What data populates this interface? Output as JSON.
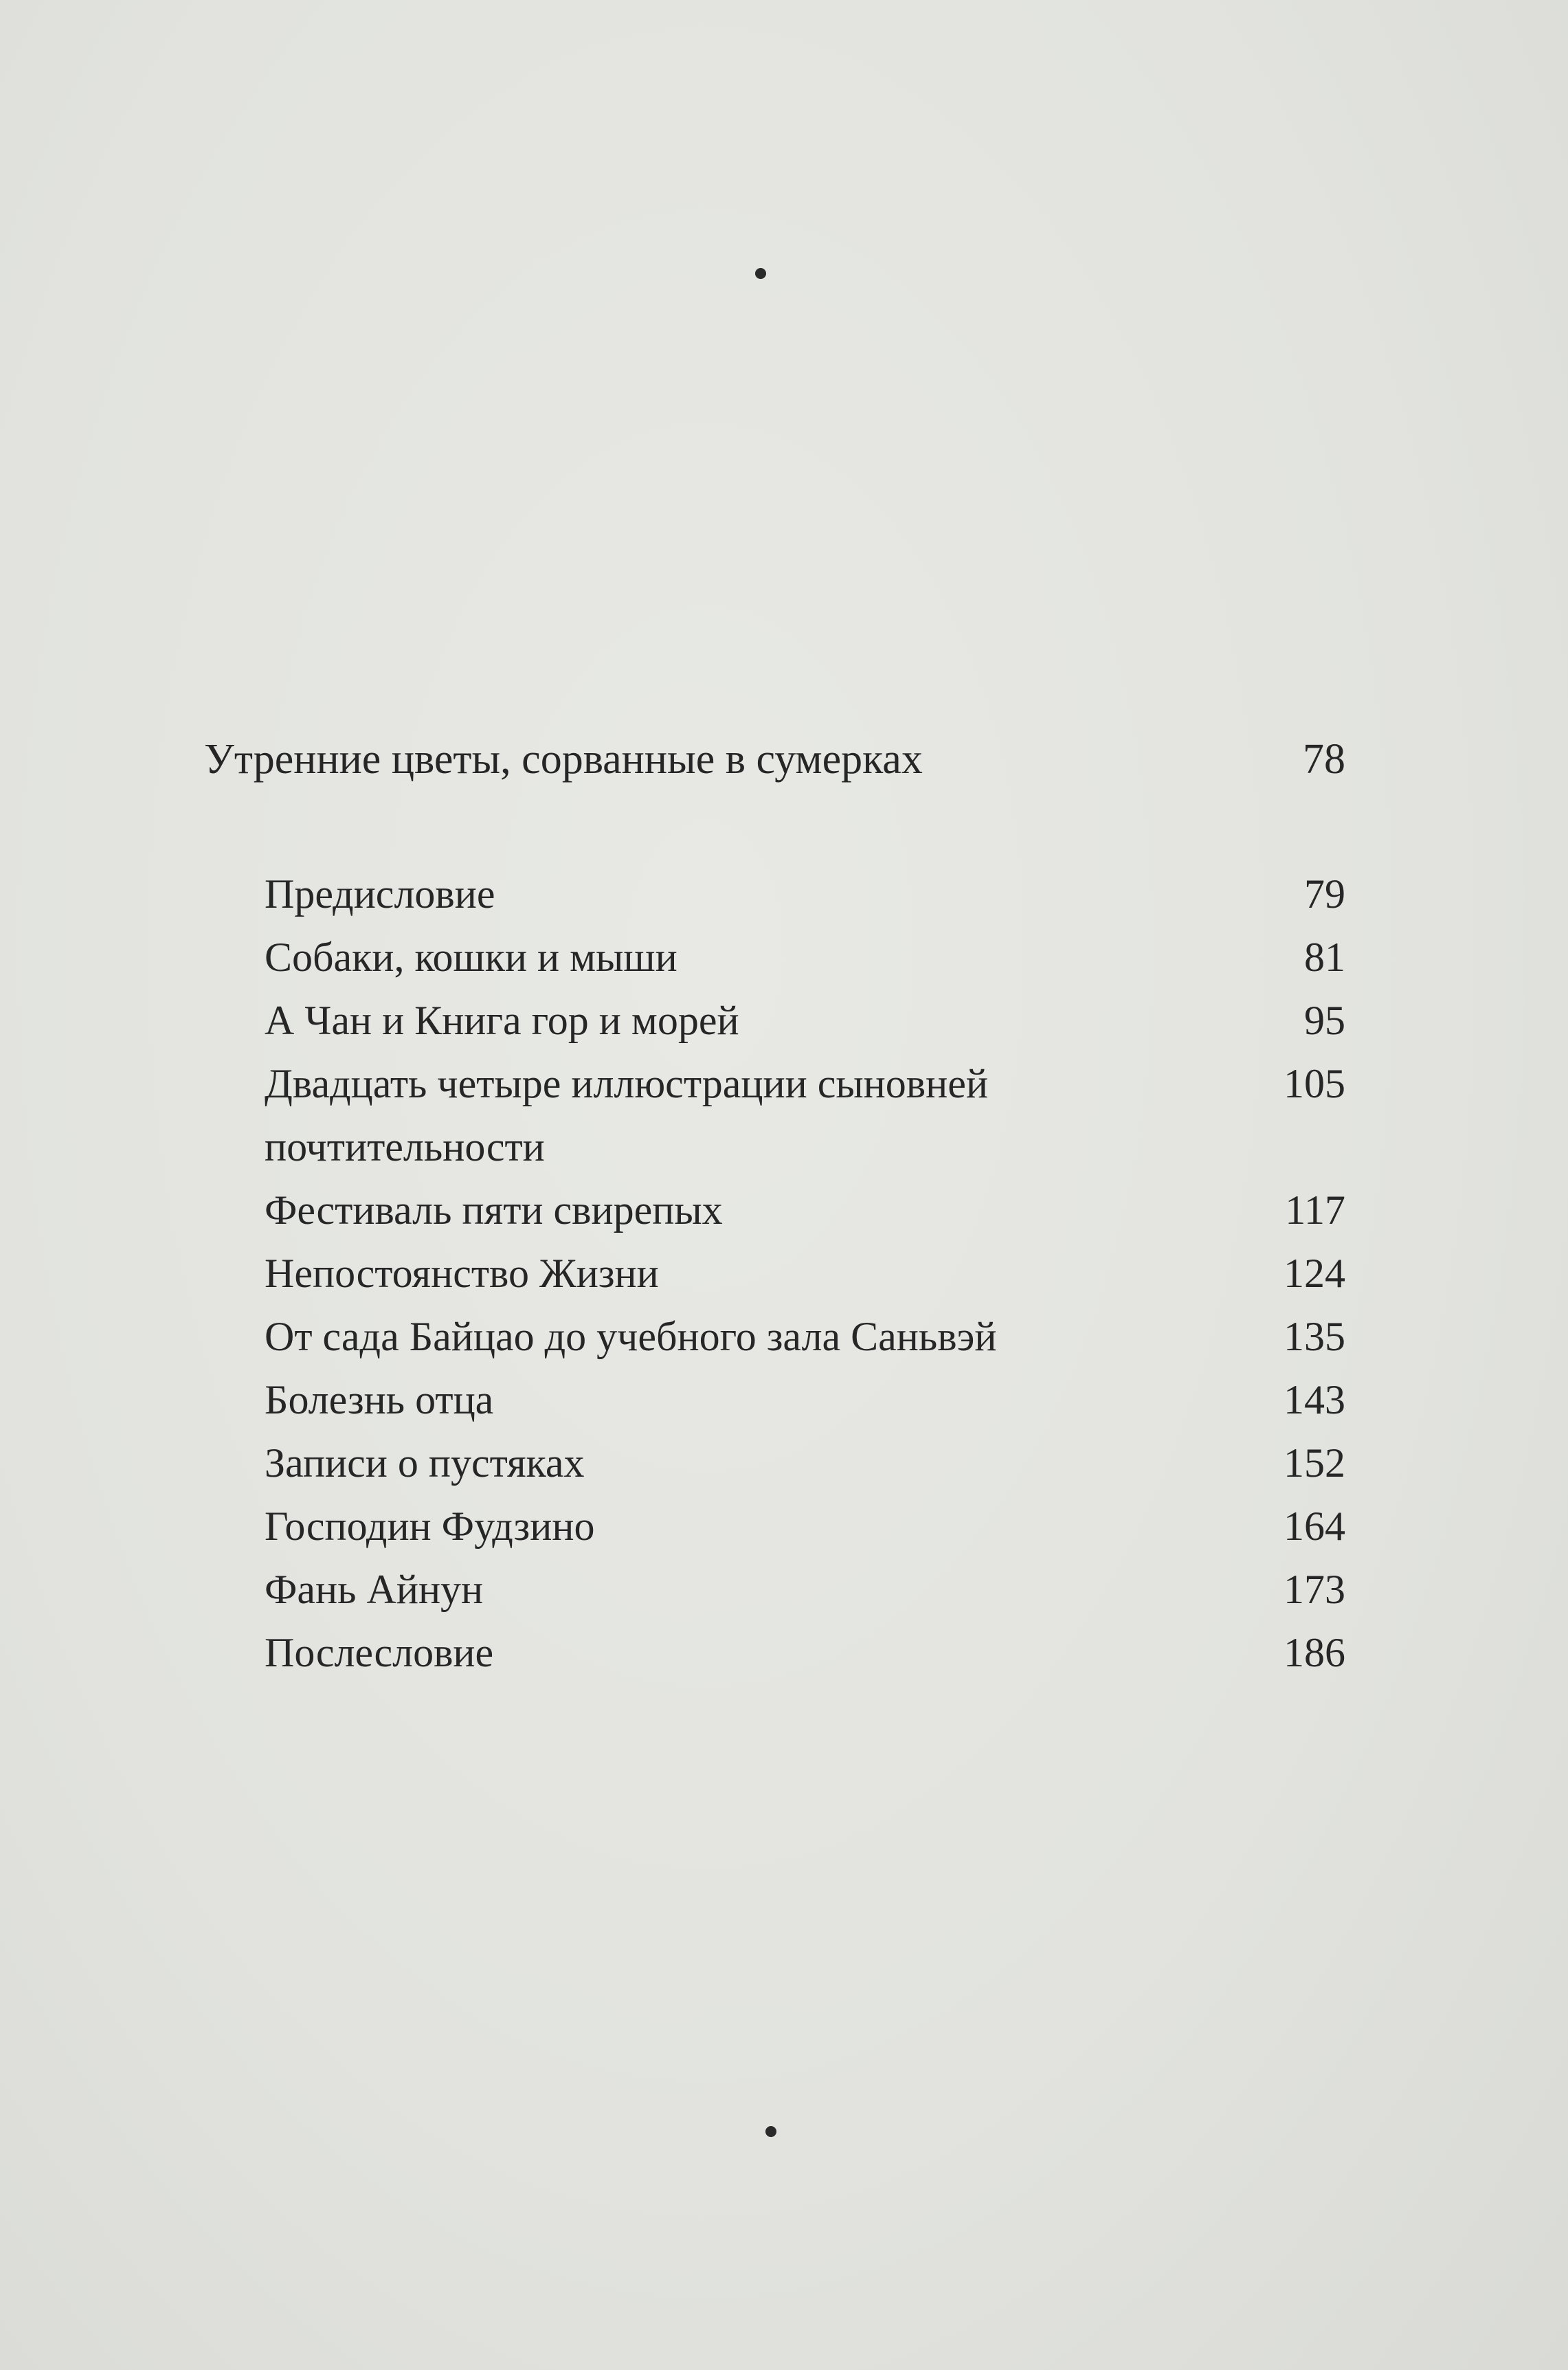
{
  "section": {
    "title": "Утренние цветы, сорванные в сумерках",
    "page": "78"
  },
  "entries": [
    {
      "title": "Предисловие",
      "page": "79"
    },
    {
      "title": "Собаки, кошки и мыши",
      "page": "81"
    },
    {
      "title": "А Чан и Книга гор и морей",
      "page": "95"
    },
    {
      "title": "Двадцать четыре иллюстрации сыновней почтительности",
      "page": "105"
    },
    {
      "title": "Фестиваль пяти свирепых",
      "page": "117"
    },
    {
      "title": "Непостоянство Жизни",
      "page": "124"
    },
    {
      "title": "От сада Байцао до учебного зала Саньвэй",
      "page": "135"
    },
    {
      "title": "Болезнь отца",
      "page": "143"
    },
    {
      "title": "Записи о пустяках",
      "page": "152"
    },
    {
      "title": "Господин Фудзино",
      "page": "164"
    },
    {
      "title": "Фань Айнун",
      "page": "173"
    },
    {
      "title": "Послесловие",
      "page": "186"
    }
  ]
}
